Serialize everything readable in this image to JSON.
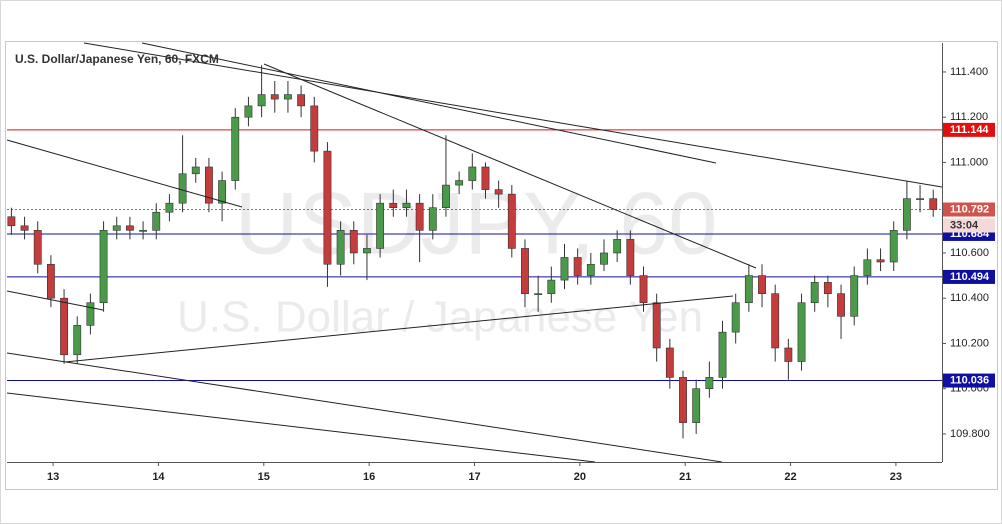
{
  "chart_data": {
    "type": "candlestick",
    "title": "U.S. Dollar/Japanese Yen, 60, FXCM",
    "watermark_symbol": "USDJPY, 60",
    "watermark_name": "U.S. Dollar / Japanese Yen",
    "up_color": "#4a9a4a",
    "down_color": "#c43c3c",
    "x": [
      1,
      4,
      7,
      10,
      13,
      16,
      19,
      22,
      25,
      28,
      31,
      34,
      37,
      40,
      43,
      46,
      49,
      52,
      55,
      58,
      61,
      64,
      67,
      70,
      73,
      76,
      79,
      82,
      85,
      88,
      91,
      94,
      97,
      100,
      103,
      106,
      109,
      112,
      115,
      118,
      121,
      124,
      127,
      130,
      133,
      136,
      139,
      142,
      145,
      148,
      151,
      154,
      157,
      160,
      163,
      166,
      169,
      172,
      175,
      178,
      181,
      184,
      187,
      190,
      193,
      196,
      199,
      202,
      205,
      208,
      211
    ],
    "open": [
      110.76,
      110.72,
      110.7,
      110.55,
      110.4,
      110.15,
      110.28,
      110.38,
      110.7,
      110.72,
      110.7,
      110.7,
      110.78,
      110.82,
      110.95,
      110.98,
      110.82,
      110.92,
      111.2,
      111.25,
      111.3,
      111.28,
      111.3,
      111.25,
      111.05,
      110.55,
      110.7,
      110.6,
      110.62,
      110.82,
      110.8,
      110.82,
      110.7,
      110.8,
      110.9,
      110.92,
      110.98,
      110.88,
      110.86,
      110.62,
      110.42,
      110.42,
      110.48,
      110.58,
      110.5,
      110.55,
      110.6,
      110.66,
      110.5,
      110.38,
      110.18,
      110.05,
      109.85,
      110.0,
      110.05,
      110.25,
      110.38,
      110.5,
      110.42,
      110.18,
      110.12,
      110.38,
      110.47,
      110.42,
      110.32,
      110.5,
      110.57,
      110.56,
      110.7,
      110.84,
      110.84
    ],
    "high": [
      110.8,
      110.76,
      110.74,
      110.59,
      110.44,
      110.32,
      110.42,
      110.74,
      110.76,
      110.76,
      110.74,
      110.82,
      110.86,
      111.12,
      111.02,
      111.02,
      110.96,
      111.24,
      111.29,
      111.43,
      111.36,
      111.36,
      111.34,
      111.29,
      111.09,
      110.74,
      110.74,
      110.68,
      110.86,
      110.88,
      110.88,
      110.86,
      110.86,
      111.12,
      110.96,
      111.04,
      111.0,
      110.92,
      110.9,
      110.66,
      110.5,
      110.54,
      110.64,
      110.62,
      110.6,
      110.66,
      110.7,
      110.7,
      110.54,
      110.42,
      110.22,
      110.08,
      110.04,
      110.12,
      110.3,
      110.42,
      110.55,
      110.55,
      110.46,
      110.22,
      110.42,
      110.5,
      110.5,
      110.46,
      110.54,
      110.62,
      110.62,
      110.74,
      110.92,
      110.9,
      110.88
    ],
    "low": [
      110.68,
      110.66,
      110.51,
      110.36,
      110.11,
      110.11,
      110.24,
      110.34,
      110.66,
      110.66,
      110.66,
      110.66,
      110.74,
      110.78,
      110.91,
      110.78,
      110.74,
      110.88,
      111.16,
      111.2,
      111.22,
      111.22,
      111.2,
      111.0,
      110.45,
      110.5,
      110.55,
      110.48,
      110.58,
      110.76,
      110.76,
      110.56,
      110.66,
      110.76,
      110.86,
      110.88,
      110.84,
      110.8,
      110.58,
      110.36,
      110.34,
      110.38,
      110.44,
      110.46,
      110.46,
      110.52,
      110.56,
      110.46,
      110.34,
      110.12,
      110.0,
      109.78,
      109.8,
      109.96,
      110.0,
      110.2,
      110.34,
      110.36,
      110.12,
      110.04,
      110.08,
      110.34,
      110.36,
      110.22,
      110.28,
      110.46,
      110.52,
      110.52,
      110.66,
      110.78,
      110.76
    ],
    "close": [
      110.72,
      110.7,
      110.55,
      110.4,
      110.15,
      110.28,
      110.38,
      110.7,
      110.72,
      110.7,
      110.7,
      110.78,
      110.82,
      110.95,
      110.98,
      110.82,
      110.92,
      111.2,
      111.25,
      111.3,
      111.28,
      111.3,
      111.25,
      111.05,
      110.55,
      110.7,
      110.6,
      110.62,
      110.82,
      110.8,
      110.82,
      110.7,
      110.8,
      110.9,
      110.92,
      110.98,
      110.88,
      110.86,
      110.62,
      110.42,
      110.42,
      110.48,
      110.58,
      110.5,
      110.55,
      110.6,
      110.66,
      110.5,
      110.38,
      110.18,
      110.05,
      109.85,
      110.0,
      110.05,
      110.25,
      110.38,
      110.5,
      110.42,
      110.18,
      110.12,
      110.38,
      110.47,
      110.42,
      110.32,
      110.5,
      110.57,
      110.56,
      110.7,
      110.84,
      110.84,
      110.792
    ],
    "xlim": [
      0,
      213
    ],
    "ylim": [
      109.676,
      111.528
    ],
    "xticks": [
      {
        "value": 10.5,
        "label": "13"
      },
      {
        "value": 34.5,
        "label": "14"
      },
      {
        "value": 58.5,
        "label": "15"
      },
      {
        "value": 82.5,
        "label": "16"
      },
      {
        "value": 106.5,
        "label": "17"
      },
      {
        "value": 130.5,
        "label": "20"
      },
      {
        "value": 154.5,
        "label": "21"
      },
      {
        "value": 178.5,
        "label": "22"
      },
      {
        "value": 202.5,
        "label": "23"
      }
    ],
    "yticks": [
      {
        "value": 111.4,
        "label": "111.400"
      },
      {
        "value": 111.2,
        "label": "111.200"
      },
      {
        "value": 111.0,
        "label": "111.000"
      },
      {
        "value": 110.8,
        "label": "110.800"
      },
      {
        "value": 110.6,
        "label": "110.600"
      },
      {
        "value": 110.4,
        "label": "110.400"
      },
      {
        "value": 110.2,
        "label": "110.200"
      },
      {
        "value": 110.0,
        "label": "110.000"
      },
      {
        "value": 109.8,
        "label": "109.800"
      }
    ],
    "levels": [
      {
        "value": 111.144,
        "color": "#e01010"
      },
      {
        "value": 110.684,
        "color": "#1010a0"
      },
      {
        "value": 110.494,
        "color": "#1010a0"
      },
      {
        "value": 110.036,
        "color": "#1010a0"
      }
    ],
    "last_price": {
      "value": 110.792,
      "color": "#d2524c",
      "countdown": "33:04"
    }
  }
}
